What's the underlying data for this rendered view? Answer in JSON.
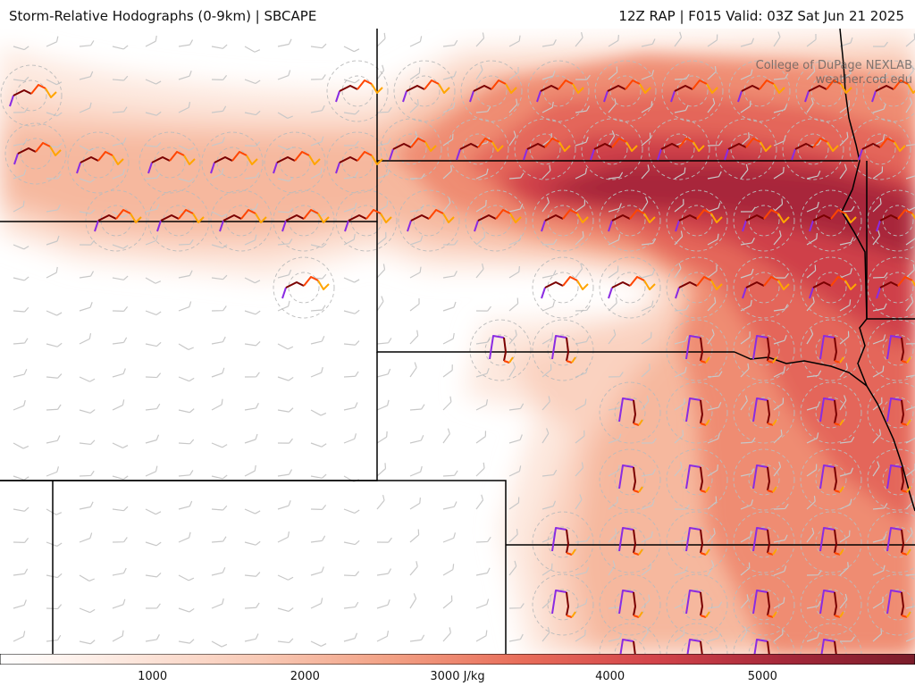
{
  "header": {
    "title": "Storm-Relative Hodographs (0-9km) | SBCAPE",
    "run_info": "12Z RAP | F015 Valid: 03Z Sat Jun 21 2025"
  },
  "credits": {
    "line1": "College of DuPage NEXLAB",
    "line2": "weather.cod.edu"
  },
  "colorbar": {
    "min": 0,
    "max": 6000,
    "tick_labels": [
      {
        "value": 1000,
        "text": "1000"
      },
      {
        "value": 2000,
        "text": "2000"
      },
      {
        "value": 3000,
        "text": "3000 J/kg"
      },
      {
        "value": 4000,
        "text": "4000"
      },
      {
        "value": 5000,
        "text": "5000"
      }
    ],
    "colors": [
      "#ffffff",
      "#fce6dc",
      "#f8c9b5",
      "#f2a084",
      "#e86d5a",
      "#d3444a",
      "#a5283a",
      "#7a1c2a"
    ]
  },
  "hodograph_colors": {
    "layer_0_1km": "#8a2be2",
    "layer_1_3km": "#7a0000",
    "layer_3_6km": "#ff4500",
    "layer_6_9km": "#ffa500"
  },
  "map_colors": {
    "border": "#000000",
    "wind_barb": "#c8c8c8",
    "range_ring": "#bbbbbb"
  }
}
